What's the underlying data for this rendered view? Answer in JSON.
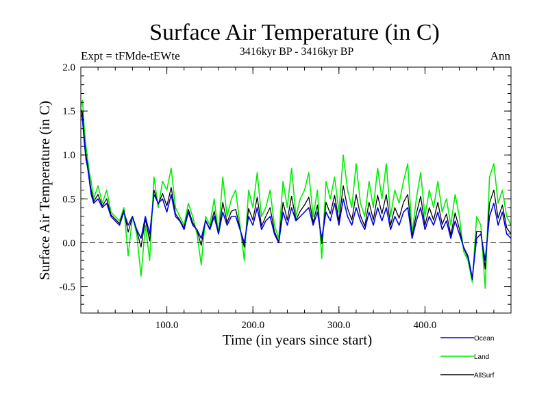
{
  "chart_data": {
    "type": "line",
    "title": "Surface Air Temperature (in C)",
    "subtitle": "3416kyr BP - 3416kyr BP",
    "left_label": "Expt = tFMde-tEWte",
    "right_label": "Ann",
    "xlabel": "Time (in years since start)",
    "ylabel": "Surface Air Temperature (in C)",
    "xlim": [
      0,
      500
    ],
    "ylim": [
      -0.8,
      2.0
    ],
    "x_ticks": [
      100,
      200,
      300,
      400
    ],
    "x_tick_labels": [
      "100.0",
      "200.0",
      "300.0",
      "400.0"
    ],
    "y_ticks": [
      -0.5,
      0.0,
      0.5,
      1.0,
      1.5,
      2.0
    ],
    "y_tick_labels": [
      "-0.5",
      "0.0",
      "0.5",
      "1.0",
      "1.5",
      "2.0"
    ],
    "zero_line": 0.0,
    "legend_position": "bottom-right",
    "series": [
      {
        "name": "Land",
        "color": "#00ee00",
        "x": [
          0,
          2,
          4,
          6,
          8,
          10,
          12,
          15,
          20,
          25,
          30,
          35,
          40,
          45,
          50,
          55,
          60,
          65,
          70,
          75,
          80,
          85,
          90,
          95,
          100,
          105,
          110,
          115,
          120,
          125,
          130,
          135,
          140,
          145,
          150,
          155,
          160,
          165,
          170,
          175,
          180,
          185,
          190,
          195,
          200,
          205,
          210,
          215,
          220,
          225,
          230,
          235,
          240,
          245,
          250,
          255,
          260,
          265,
          270,
          275,
          280,
          285,
          290,
          295,
          300,
          305,
          310,
          315,
          320,
          325,
          330,
          335,
          340,
          345,
          350,
          355,
          360,
          365,
          370,
          375,
          380,
          385,
          390,
          395,
          400,
          405,
          410,
          415,
          420,
          425,
          430,
          435,
          440,
          445,
          450,
          455,
          460,
          465,
          470,
          475,
          480,
          485,
          490,
          495,
          500
        ],
        "values": [
          1.55,
          1.62,
          1.3,
          1.1,
          0.95,
          0.8,
          0.7,
          0.5,
          0.65,
          0.45,
          0.6,
          0.35,
          0.3,
          0.25,
          0.4,
          -0.15,
          0.3,
          0.1,
          -0.38,
          0.2,
          -0.2,
          0.75,
          0.4,
          0.7,
          0.6,
          0.85,
          0.4,
          0.3,
          0.2,
          0.45,
          0.3,
          0.1,
          -0.25,
          0.3,
          0.2,
          0.5,
          0.1,
          0.75,
          0.3,
          0.5,
          0.6,
          0.2,
          -0.2,
          0.6,
          0.4,
          0.8,
          0.3,
          0.4,
          0.6,
          0.2,
          0.05,
          0.7,
          0.4,
          0.85,
          0.3,
          0.5,
          0.6,
          0.8,
          0.3,
          0.6,
          -0.18,
          0.7,
          0.5,
          0.75,
          0.35,
          1.0,
          0.6,
          0.4,
          0.9,
          0.45,
          0.3,
          0.7,
          0.4,
          0.85,
          0.5,
          0.9,
          0.3,
          0.6,
          0.45,
          0.7,
          0.9,
          0.1,
          0.5,
          0.8,
          0.3,
          0.6,
          0.4,
          0.7,
          0.35,
          0.5,
          0.2,
          0.55,
          0.3,
          -0.1,
          -0.2,
          -0.45,
          0.3,
          0.2,
          -0.52,
          0.75,
          0.9,
          0.45,
          0.6,
          0.3,
          0.2
        ]
      },
      {
        "name": "Ocean",
        "color": "#0000ee",
        "x": [
          0,
          2,
          4,
          6,
          8,
          10,
          12,
          15,
          20,
          25,
          30,
          35,
          40,
          45,
          50,
          55,
          60,
          65,
          70,
          75,
          80,
          85,
          90,
          95,
          100,
          105,
          110,
          115,
          120,
          125,
          130,
          135,
          140,
          145,
          150,
          155,
          160,
          165,
          170,
          175,
          180,
          185,
          190,
          195,
          200,
          205,
          210,
          215,
          220,
          225,
          230,
          235,
          240,
          245,
          250,
          255,
          260,
          265,
          270,
          275,
          280,
          285,
          290,
          295,
          300,
          305,
          310,
          315,
          320,
          325,
          330,
          335,
          340,
          345,
          350,
          355,
          360,
          365,
          370,
          375,
          380,
          385,
          390,
          395,
          400,
          405,
          410,
          415,
          420,
          425,
          430,
          435,
          440,
          445,
          450,
          455,
          460,
          465,
          470,
          475,
          480,
          485,
          490,
          495,
          500
        ],
        "values": [
          1.5,
          1.4,
          1.15,
          0.95,
          0.85,
          0.7,
          0.55,
          0.45,
          0.5,
          0.4,
          0.45,
          0.3,
          0.25,
          0.2,
          0.35,
          0.2,
          0.3,
          0.15,
          0.05,
          0.3,
          0.1,
          0.55,
          0.45,
          0.5,
          0.35,
          0.55,
          0.3,
          0.25,
          0.15,
          0.35,
          0.2,
          0.15,
          0.05,
          0.25,
          0.15,
          0.3,
          0.1,
          0.35,
          0.2,
          0.3,
          0.3,
          0.15,
          0.0,
          0.3,
          0.2,
          0.4,
          0.15,
          0.25,
          0.3,
          0.1,
          0.0,
          0.35,
          0.2,
          0.4,
          0.25,
          0.3,
          0.35,
          0.4,
          0.2,
          0.35,
          0.05,
          0.35,
          0.25,
          0.45,
          0.2,
          0.5,
          0.3,
          0.2,
          0.4,
          0.25,
          0.15,
          0.35,
          0.2,
          0.4,
          0.25,
          0.4,
          0.15,
          0.3,
          0.2,
          0.35,
          0.4,
          0.05,
          0.25,
          0.4,
          0.15,
          0.3,
          0.2,
          0.35,
          0.15,
          0.25,
          0.05,
          0.25,
          0.1,
          -0.05,
          -0.15,
          -0.4,
          0.05,
          0.1,
          -0.2,
          0.3,
          0.45,
          0.2,
          0.35,
          0.1,
          0.05
        ]
      },
      {
        "name": "AllSurf",
        "color": "#000000",
        "x": [
          0,
          2,
          4,
          6,
          8,
          10,
          12,
          15,
          20,
          25,
          30,
          35,
          40,
          45,
          50,
          55,
          60,
          65,
          70,
          75,
          80,
          85,
          90,
          95,
          100,
          105,
          110,
          115,
          120,
          125,
          130,
          135,
          140,
          145,
          150,
          155,
          160,
          165,
          170,
          175,
          180,
          185,
          190,
          195,
          200,
          205,
          210,
          215,
          220,
          225,
          230,
          235,
          240,
          245,
          250,
          255,
          260,
          265,
          270,
          275,
          280,
          285,
          290,
          295,
          300,
          305,
          310,
          315,
          320,
          325,
          330,
          335,
          340,
          345,
          350,
          355,
          360,
          365,
          370,
          375,
          380,
          385,
          390,
          395,
          400,
          405,
          410,
          415,
          420,
          425,
          430,
          435,
          440,
          445,
          450,
          455,
          460,
          465,
          470,
          475,
          480,
          485,
          490,
          495,
          500
        ],
        "values": [
          1.52,
          1.48,
          1.2,
          1.0,
          0.88,
          0.73,
          0.6,
          0.47,
          0.55,
          0.42,
          0.5,
          0.32,
          0.27,
          0.22,
          0.37,
          0.12,
          0.3,
          0.14,
          -0.05,
          0.27,
          0.02,
          0.6,
          0.44,
          0.56,
          0.42,
          0.63,
          0.33,
          0.26,
          0.17,
          0.38,
          0.23,
          0.14,
          -0.03,
          0.26,
          0.16,
          0.36,
          0.1,
          0.46,
          0.23,
          0.36,
          0.38,
          0.16,
          -0.05,
          0.39,
          0.26,
          0.52,
          0.19,
          0.3,
          0.4,
          0.13,
          0.01,
          0.46,
          0.26,
          0.53,
          0.26,
          0.36,
          0.43,
          0.52,
          0.23,
          0.43,
          -0.01,
          0.46,
          0.33,
          0.54,
          0.25,
          0.65,
          0.39,
          0.26,
          0.55,
          0.31,
          0.19,
          0.46,
          0.26,
          0.54,
          0.33,
          0.55,
          0.2,
          0.4,
          0.28,
          0.46,
          0.55,
          0.07,
          0.33,
          0.53,
          0.2,
          0.4,
          0.26,
          0.46,
          0.21,
          0.33,
          0.09,
          0.34,
          0.16,
          -0.06,
          -0.17,
          -0.42,
          0.13,
          0.13,
          -0.3,
          0.45,
          0.6,
          0.28,
          0.43,
          0.17,
          0.1
        ]
      }
    ]
  }
}
